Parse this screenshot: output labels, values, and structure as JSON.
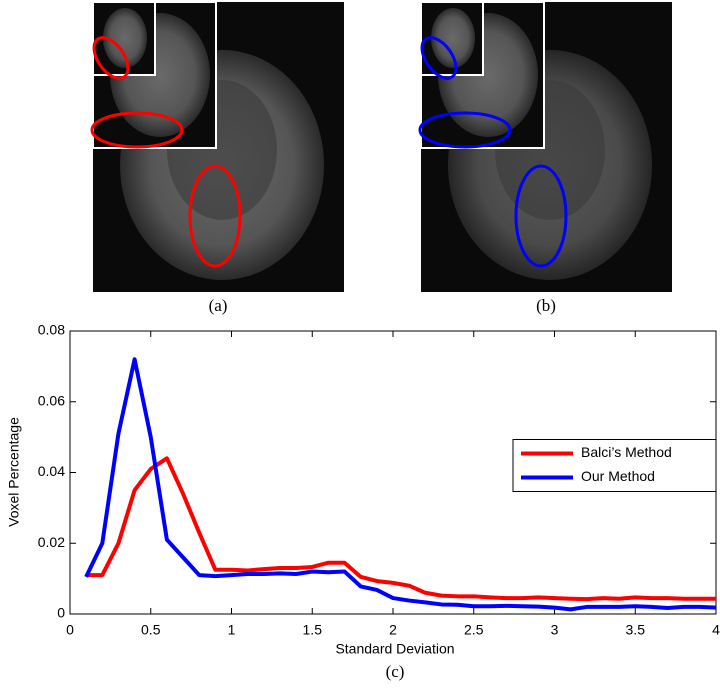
{
  "panels": [
    {
      "caption": "(a)"
    },
    {
      "caption": "(b)"
    }
  ],
  "chart_data": {
    "type": "line",
    "caption": "(c)",
    "x_label": "Standard Deviation",
    "y_label": "Voxel Percentage",
    "x": [
      0.1,
      0.2,
      0.3,
      0.4,
      0.5,
      0.6,
      0.7,
      0.8,
      0.9,
      1.0,
      1.1,
      1.2,
      1.3,
      1.4,
      1.5,
      1.6,
      1.7,
      1.8,
      1.9,
      2.0,
      2.1,
      2.2,
      2.3,
      2.4,
      2.5,
      2.6,
      2.7,
      2.8,
      2.9,
      3.0,
      3.1,
      3.2,
      3.3,
      3.4,
      3.5,
      3.6,
      3.7,
      3.8,
      3.9,
      4.0
    ],
    "series": [
      {
        "name": "Balci’s Method",
        "color": "#ff0000",
        "values": [
          0.011,
          0.011,
          0.02,
          0.035,
          0.041,
          0.044,
          0.034,
          0.023,
          0.0125,
          0.0125,
          0.0123,
          0.0127,
          0.013,
          0.013,
          0.0133,
          0.0145,
          0.0145,
          0.0105,
          0.0093,
          0.0088,
          0.008,
          0.006,
          0.0052,
          0.005,
          0.005,
          0.0047,
          0.0045,
          0.0045,
          0.0047,
          0.0045,
          0.0043,
          0.0042,
          0.0045,
          0.0043,
          0.0047,
          0.0045,
          0.0045,
          0.0043,
          0.0043,
          0.0043
        ]
      },
      {
        "name": "Our Method",
        "color": "#0000ff",
        "values": [
          0.0105,
          0.02,
          0.051,
          0.072,
          0.05,
          0.021,
          0.016,
          0.011,
          0.0107,
          0.011,
          0.0113,
          0.0113,
          0.0115,
          0.0113,
          0.012,
          0.0118,
          0.012,
          0.0078,
          0.0068,
          0.0045,
          0.0038,
          0.0033,
          0.0027,
          0.0026,
          0.0022,
          0.0022,
          0.0023,
          0.0022,
          0.0021,
          0.0018,
          0.0013,
          0.002,
          0.002,
          0.002,
          0.0022,
          0.002,
          0.0017,
          0.002,
          0.002,
          0.0018
        ]
      }
    ],
    "xlim": [
      0,
      4
    ],
    "ylim": [
      0,
      0.08
    ],
    "xticks": [
      0,
      0.5,
      1,
      1.5,
      2,
      2.5,
      3,
      3.5,
      4
    ],
    "yticks": [
      0,
      0.02,
      0.04,
      0.06,
      0.08
    ],
    "grid": false,
    "legend": "right"
  }
}
